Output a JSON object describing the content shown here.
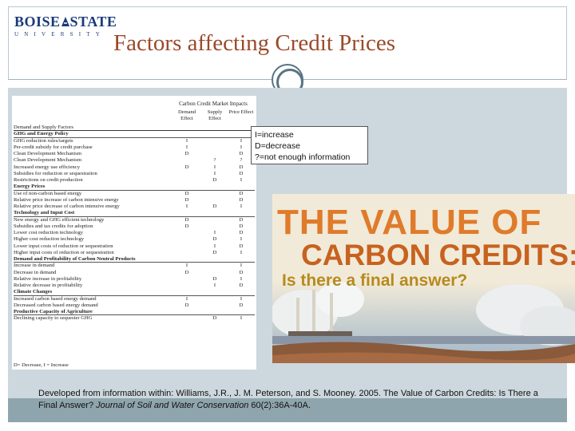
{
  "logo": {
    "line1_left": "BOISE",
    "line1_right": "STATE",
    "line2": "UNIVERSITY"
  },
  "title": "Factors affecting Credit Prices",
  "table": {
    "header_main": "Carbon Credit Market Impacts",
    "col_demand": "Demand Effect",
    "col_supply": "Supply Effect",
    "col_price": "Price Effect",
    "col_factors": "Demand and Supply Factors",
    "rows": [
      {
        "type": "section",
        "label": "GHG and Energy Policy",
        "d": "",
        "s": "",
        "p": ""
      },
      {
        "type": "row",
        "label": "GHG reduction rules/targets",
        "d": "I",
        "s": "",
        "p": "I"
      },
      {
        "type": "row",
        "label": "Per-credit subsidy for credit purchase",
        "d": "I",
        "s": "",
        "p": "I"
      },
      {
        "type": "row",
        "label": "Clean Development Mechanism",
        "d": "D",
        "s": "",
        "p": "D"
      },
      {
        "type": "row",
        "label": "Clean Development Mechanism",
        "d": "",
        "s": "?",
        "p": "?"
      },
      {
        "type": "row",
        "label": "Increased energy use efficiency",
        "d": "D",
        "s": "I",
        "p": "D"
      },
      {
        "type": "row",
        "label": "Subsidies for reduction or sequestration",
        "d": "",
        "s": "I",
        "p": "D"
      },
      {
        "type": "row",
        "label": "Restrictions on credit production",
        "d": "",
        "s": "D",
        "p": "I"
      },
      {
        "type": "section",
        "label": "Energy Prices",
        "d": "",
        "s": "",
        "p": ""
      },
      {
        "type": "row",
        "label": "Use of non-carbon based energy",
        "d": "D",
        "s": "",
        "p": "D"
      },
      {
        "type": "row",
        "label": "Relative price increase of carbon intensive energy",
        "d": "D",
        "s": "",
        "p": "D"
      },
      {
        "type": "row",
        "label": "Relative price decrease of carbon intensive energy",
        "d": "I",
        "s": "D",
        "p": "I"
      },
      {
        "type": "section",
        "label": "Technology and Input Cost",
        "d": "",
        "s": "",
        "p": ""
      },
      {
        "type": "row",
        "label": "New energy and GHG efficient technology",
        "d": "D",
        "s": "",
        "p": "D"
      },
      {
        "type": "row",
        "label": "Subsidies and tax credits for adoption",
        "d": "D",
        "s": "",
        "p": "D"
      },
      {
        "type": "row",
        "label": "Lower cost reduction technology",
        "d": "",
        "s": "I",
        "p": "D"
      },
      {
        "type": "row",
        "label": "Higher cost reduction technology",
        "d": "",
        "s": "D",
        "p": "I"
      },
      {
        "type": "row",
        "label": "Lower input costs of reduction or sequestration",
        "d": "",
        "s": "I",
        "p": "D"
      },
      {
        "type": "row",
        "label": "Higher input costs of reduction or sequestration",
        "d": "",
        "s": "D",
        "p": "I"
      },
      {
        "type": "section",
        "label": "Demand and Profitability of Carbon Neutral Products",
        "d": "",
        "s": "",
        "p": ""
      },
      {
        "type": "row",
        "label": "Increase in demand",
        "d": "I",
        "s": "",
        "p": "I"
      },
      {
        "type": "row",
        "label": "Decrease in demand",
        "d": "D",
        "s": "",
        "p": "D"
      },
      {
        "type": "row",
        "label": "Relative increase in profitability",
        "d": "",
        "s": "D",
        "p": "I"
      },
      {
        "type": "row",
        "label": "Relative decrease in profitability",
        "d": "",
        "s": "I",
        "p": "D"
      },
      {
        "type": "section",
        "label": "Climate Changes",
        "d": "",
        "s": "",
        "p": ""
      },
      {
        "type": "row",
        "label": "Increased carbon based energy demand",
        "d": "I",
        "s": "",
        "p": "I"
      },
      {
        "type": "row",
        "label": "Decreased carbon based energy demand",
        "d": "D",
        "s": "",
        "p": "D"
      },
      {
        "type": "section",
        "label": "Productive Capacity of Agriculture",
        "d": "",
        "s": "",
        "p": ""
      },
      {
        "type": "row",
        "label": "Declining capacity to sequester GHG",
        "d": "",
        "s": "D",
        "p": "I"
      }
    ],
    "footnote": "D= Decrease, I = Increase"
  },
  "key": {
    "line1": "I=increase",
    "line2": "D=decrease",
    "line3": "?=not enough information"
  },
  "cover": {
    "line1": "THE VALUE OF",
    "line2": "CARBON CREDITS:",
    "line3": "Is there a final answer?"
  },
  "caption": {
    "part1": "Developed from information within: Williams, J.R., J. M. Peterson, and S. Mooney. 2005. The Value of Carbon Credits:  Is There a Final Answer? ",
    "journal": "Journal of Soil and Water Conservation",
    "part2": " 60(2):36A-40A."
  },
  "colors": {
    "title": "#9a4a2a",
    "logo": "#1b3a7a",
    "content_bg": "#cdd7de",
    "band": "#8fa5ad",
    "cover_orange": "#df7b2b",
    "cover_gold": "#b68a1f"
  }
}
